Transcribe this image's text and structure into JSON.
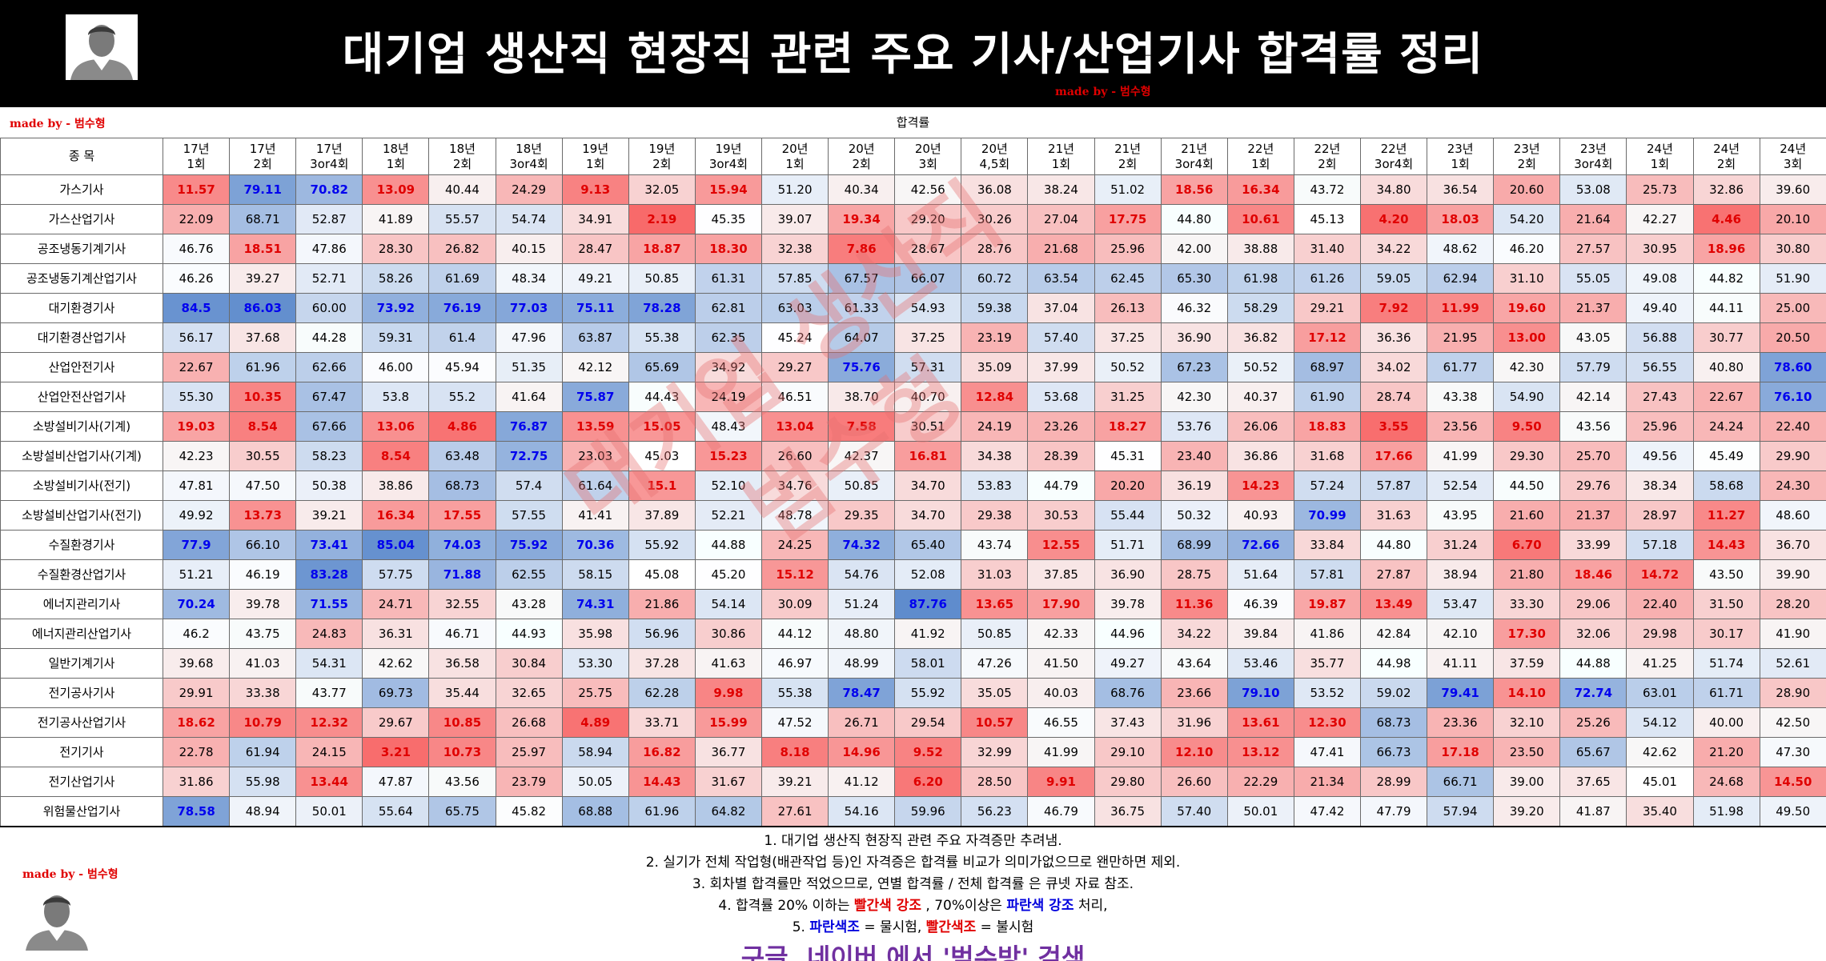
{
  "header": {
    "title": "대기업 생산직 현장직 관련 주요 기사/산업기사 합격률 정리",
    "credit": "made by - 범수형"
  },
  "subheader": {
    "credit": "made by - 범수형",
    "caption": "합격률"
  },
  "table": {
    "corner_label": "종 목",
    "columns": [
      {
        "year": "17년",
        "round": "1회"
      },
      {
        "year": "17년",
        "round": "2회"
      },
      {
        "year": "17년",
        "round": "3or4회"
      },
      {
        "year": "18년",
        "round": "1회"
      },
      {
        "year": "18년",
        "round": "2회"
      },
      {
        "year": "18년",
        "round": "3or4회"
      },
      {
        "year": "19년",
        "round": "1회"
      },
      {
        "year": "19년",
        "round": "2회"
      },
      {
        "year": "19년",
        "round": "3or4회"
      },
      {
        "year": "20년",
        "round": "1회"
      },
      {
        "year": "20년",
        "round": "2회"
      },
      {
        "year": "20년",
        "round": "3회"
      },
      {
        "year": "20년",
        "round": "4,5회"
      },
      {
        "year": "21년",
        "round": "1회"
      },
      {
        "year": "21년",
        "round": "2회"
      },
      {
        "year": "21년",
        "round": "3or4회"
      },
      {
        "year": "22년",
        "round": "1회"
      },
      {
        "year": "22년",
        "round": "2회"
      },
      {
        "year": "22년",
        "round": "3or4회"
      },
      {
        "year": "23년",
        "round": "1회"
      },
      {
        "year": "23년",
        "round": "2회"
      },
      {
        "year": "23년",
        "round": "3or4회"
      },
      {
        "year": "24년",
        "round": "1회"
      },
      {
        "year": "24년",
        "round": "2회"
      },
      {
        "year": "24년",
        "round": "3회"
      }
    ],
    "rows": [
      {
        "name": "가스기사",
        "values": [
          "11.57",
          "79.11",
          "70.82",
          "13.09",
          "40.44",
          "24.29",
          "9.13",
          "32.05",
          "15.94",
          "51.20",
          "40.34",
          "42.56",
          "36.08",
          "38.24",
          "51.02",
          "18.56",
          "16.34",
          "43.72",
          "34.80",
          "36.54",
          "20.60",
          "53.08",
          "25.73",
          "32.86",
          "39.60"
        ]
      },
      {
        "name": "가스산업기사",
        "values": [
          "22.09",
          "68.71",
          "52.87",
          "41.89",
          "55.57",
          "54.74",
          "34.91",
          "2.19",
          "45.35",
          "39.07",
          "19.34",
          "29.20",
          "30.26",
          "27.04",
          "17.75",
          "44.80",
          "10.61",
          "45.13",
          "4.20",
          "18.03",
          "54.20",
          "21.64",
          "42.27",
          "4.46",
          "20.10"
        ]
      },
      {
        "name": "공조냉동기계기사",
        "values": [
          "46.76",
          "18.51",
          "47.86",
          "28.30",
          "26.82",
          "40.15",
          "28.47",
          "18.87",
          "18.30",
          "32.38",
          "7.86",
          "28.67",
          "28.76",
          "21.68",
          "25.96",
          "42.00",
          "38.88",
          "31.40",
          "34.22",
          "48.62",
          "46.20",
          "27.57",
          "30.95",
          "18.96",
          "30.80"
        ]
      },
      {
        "name": "공조냉동기계산업기사",
        "values": [
          "46.26",
          "39.27",
          "52.71",
          "58.26",
          "61.69",
          "48.34",
          "49.21",
          "50.85",
          "61.31",
          "57.85",
          "67.57",
          "66.07",
          "60.72",
          "63.54",
          "62.45",
          "65.30",
          "61.98",
          "61.26",
          "59.05",
          "62.94",
          "31.10",
          "55.05",
          "49.08",
          "44.82",
          "51.90"
        ]
      },
      {
        "name": "대기환경기사",
        "values": [
          "84.5",
          "86.03",
          "60.00",
          "73.92",
          "76.19",
          "77.03",
          "75.11",
          "78.28",
          "62.81",
          "63.03",
          "61.33",
          "54.93",
          "59.38",
          "37.04",
          "26.13",
          "46.32",
          "58.29",
          "29.21",
          "7.92",
          "11.99",
          "19.60",
          "21.37",
          "49.40",
          "44.11",
          "25.00"
        ]
      },
      {
        "name": "대기환경산업기사",
        "values": [
          "56.17",
          "37.68",
          "44.28",
          "59.31",
          "61.4",
          "47.96",
          "63.87",
          "55.38",
          "62.35",
          "45.24",
          "64.07",
          "37.25",
          "23.19",
          "57.40",
          "37.25",
          "36.90",
          "36.82",
          "17.12",
          "36.36",
          "21.95",
          "13.00",
          "43.05",
          "56.88",
          "30.77",
          "20.50"
        ]
      },
      {
        "name": "산업안전기사",
        "values": [
          "22.67",
          "61.96",
          "62.66",
          "46.00",
          "45.94",
          "51.35",
          "42.12",
          "65.69",
          "34.92",
          "29.27",
          "75.76",
          "57.31",
          "35.09",
          "37.99",
          "50.52",
          "67.23",
          "50.52",
          "68.97",
          "34.02",
          "61.77",
          "42.30",
          "57.79",
          "56.55",
          "40.80",
          "78.60"
        ]
      },
      {
        "name": "산업안전산업기사",
        "values": [
          "55.30",
          "10.35",
          "67.47",
          "53.8",
          "55.2",
          "41.64",
          "75.87",
          "44.43",
          "24.19",
          "46.51",
          "38.70",
          "40.70",
          "12.84",
          "53.68",
          "31.25",
          "42.30",
          "40.37",
          "61.90",
          "28.74",
          "43.38",
          "54.90",
          "42.14",
          "27.43",
          "22.67",
          "76.10"
        ]
      },
      {
        "name": "소방설비기사(기계)",
        "values": [
          "19.03",
          "8.54",
          "67.66",
          "13.06",
          "4.86",
          "76.87",
          "13.59",
          "15.05",
          "48.43",
          "13.04",
          "7.58",
          "30.51",
          "24.19",
          "23.26",
          "18.27",
          "53.76",
          "26.06",
          "18.83",
          "3.55",
          "23.56",
          "9.50",
          "43.56",
          "25.96",
          "24.24",
          "22.40"
        ]
      },
      {
        "name": "소방설비산업기사(기계)",
        "values": [
          "42.23",
          "30.55",
          "58.23",
          "8.54",
          "63.48",
          "72.75",
          "23.03",
          "45.03",
          "15.23",
          "26.60",
          "42.37",
          "16.81",
          "34.38",
          "28.39",
          "45.31",
          "23.40",
          "36.86",
          "31.68",
          "17.66",
          "41.99",
          "29.30",
          "25.70",
          "49.56",
          "45.49",
          "29.90"
        ]
      },
      {
        "name": "소방설비기사(전기)",
        "values": [
          "47.81",
          "47.50",
          "50.38",
          "38.86",
          "68.73",
          "57.4",
          "61.64",
          "15.1",
          "52.10",
          "34.76",
          "50.85",
          "34.70",
          "53.83",
          "44.79",
          "20.20",
          "36.19",
          "14.23",
          "57.24",
          "57.87",
          "52.54",
          "44.50",
          "29.76",
          "38.34",
          "58.68",
          "24.30"
        ]
      },
      {
        "name": "소방설비산업기사(전기)",
        "values": [
          "49.92",
          "13.73",
          "39.21",
          "16.34",
          "17.55",
          "57.55",
          "41.41",
          "37.89",
          "52.21",
          "48.78",
          "29.35",
          "34.70",
          "29.38",
          "30.53",
          "55.44",
          "50.32",
          "40.93",
          "70.99",
          "31.63",
          "43.95",
          "21.60",
          "21.37",
          "28.97",
          "11.27",
          "48.60"
        ]
      },
      {
        "name": "수질환경기사",
        "values": [
          "77.9",
          "66.10",
          "73.41",
          "85.04",
          "74.03",
          "75.92",
          "70.36",
          "55.92",
          "44.88",
          "24.25",
          "74.32",
          "65.40",
          "43.74",
          "12.55",
          "51.71",
          "68.99",
          "72.66",
          "33.84",
          "44.80",
          "31.24",
          "6.70",
          "33.99",
          "57.18",
          "14.43",
          "36.70"
        ]
      },
      {
        "name": "수질환경산업기사",
        "values": [
          "51.21",
          "46.19",
          "83.28",
          "57.75",
          "71.88",
          "62.55",
          "58.15",
          "45.08",
          "45.20",
          "15.12",
          "54.76",
          "52.08",
          "31.03",
          "37.85",
          "36.90",
          "28.75",
          "51.64",
          "57.81",
          "27.87",
          "38.94",
          "21.80",
          "18.46",
          "14.72",
          "43.50",
          "39.90"
        ]
      },
      {
        "name": "에너지관리기사",
        "values": [
          "70.24",
          "39.78",
          "71.55",
          "24.71",
          "32.55",
          "43.28",
          "74.31",
          "21.86",
          "54.14",
          "30.09",
          "51.24",
          "87.76",
          "13.65",
          "17.90",
          "39.78",
          "11.36",
          "46.39",
          "19.87",
          "13.49",
          "53.47",
          "33.30",
          "29.06",
          "22.40",
          "31.50",
          "28.20"
        ]
      },
      {
        "name": "에너지관리산업기사",
        "values": [
          "46.2",
          "43.75",
          "24.83",
          "36.31",
          "46.71",
          "44.93",
          "35.98",
          "56.96",
          "30.86",
          "44.12",
          "48.80",
          "41.92",
          "50.85",
          "42.33",
          "44.96",
          "34.22",
          "39.84",
          "41.86",
          "42.84",
          "42.10",
          "17.30",
          "32.06",
          "29.98",
          "30.17",
          "41.90"
        ]
      },
      {
        "name": "일반기계기사",
        "values": [
          "39.68",
          "41.03",
          "54.31",
          "42.62",
          "36.58",
          "30.84",
          "53.30",
          "37.28",
          "41.63",
          "46.97",
          "48.99",
          "58.01",
          "47.26",
          "41.50",
          "49.27",
          "43.64",
          "53.46",
          "35.77",
          "44.98",
          "41.11",
          "37.59",
          "44.88",
          "41.25",
          "51.74",
          "52.61"
        ]
      },
      {
        "name": "전기공사기사",
        "values": [
          "29.91",
          "33.38",
          "43.77",
          "69.73",
          "35.44",
          "32.65",
          "25.75",
          "62.28",
          "9.98",
          "55.38",
          "78.47",
          "55.92",
          "35.05",
          "40.03",
          "68.76",
          "23.66",
          "79.10",
          "53.52",
          "59.02",
          "79.41",
          "14.10",
          "72.74",
          "63.01",
          "61.71",
          "28.90"
        ]
      },
      {
        "name": "전기공사산업기사",
        "values": [
          "18.62",
          "10.79",
          "12.32",
          "29.67",
          "10.85",
          "26.68",
          "4.89",
          "33.71",
          "15.99",
          "47.52",
          "26.71",
          "29.54",
          "10.57",
          "46.55",
          "37.43",
          "31.96",
          "13.61",
          "12.30",
          "68.73",
          "23.36",
          "32.10",
          "25.26",
          "54.12",
          "40.00",
          "42.50"
        ]
      },
      {
        "name": "전기기사",
        "values": [
          "22.78",
          "61.94",
          "24.15",
          "3.21",
          "10.73",
          "25.97",
          "58.94",
          "16.82",
          "36.77",
          "8.18",
          "14.96",
          "9.52",
          "32.99",
          "41.99",
          "29.10",
          "12.10",
          "13.12",
          "47.41",
          "66.73",
          "17.18",
          "23.50",
          "65.67",
          "42.62",
          "21.20",
          "47.30"
        ]
      },
      {
        "name": "전기산업기사",
        "values": [
          "31.86",
          "55.98",
          "13.44",
          "47.87",
          "43.56",
          "23.79",
          "50.05",
          "14.43",
          "31.67",
          "39.21",
          "41.12",
          "6.20",
          "28.50",
          "9.91",
          "29.80",
          "26.60",
          "22.29",
          "21.34",
          "28.99",
          "66.71",
          "39.00",
          "37.65",
          "45.01",
          "24.68",
          "14.50"
        ]
      },
      {
        "name": "위험물산업기사",
        "values": [
          "78.58",
          "48.94",
          "50.01",
          "55.64",
          "65.75",
          "45.82",
          "68.88",
          "61.96",
          "64.82",
          "27.61",
          "54.16",
          "59.96",
          "56.23",
          "46.79",
          "36.75",
          "57.40",
          "50.01",
          "47.42",
          "47.79",
          "57.94",
          "39.20",
          "41.87",
          "35.40",
          "51.98",
          "49.50"
        ]
      }
    ]
  },
  "watermark": {
    "line1": "대기업 생산직",
    "line2": "범수형"
  },
  "footer": {
    "credit": "made by - 범수형",
    "note1": "1. 대기업 생산직 현장직 관련 주요 자격증만 추려냄.",
    "note2": "2. 실기가 전체 작업형(배관작업 등)인 자격증은 합격률 비교가 의미가없으므로 왠만하면 제외.",
    "note3": "3. 회차별 합격률만 적었으므로, 연별 합격률 / 전체 합격률 은 큐넷 자료 참조.",
    "note4_a": "4. 합격률 20% 이하는 ",
    "note4_red": "빨간색 강조",
    "note4_b": " , 70%이상은 ",
    "note4_blue": "파란색 강조",
    "note4_c": " 처리,",
    "note5_a": "5. ",
    "note5_blue": "파란색조",
    "note5_b": " = 물시험, ",
    "note5_red": "빨간색조",
    "note5_c": " = 불시험",
    "search": "구글, 네이버 에서 '범수방' 검색"
  }
}
